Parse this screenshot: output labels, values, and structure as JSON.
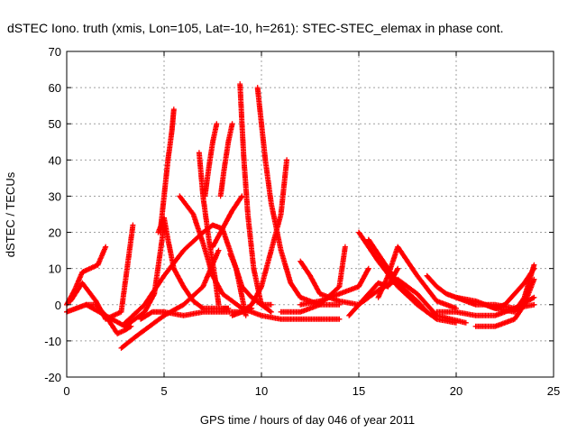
{
  "chart_data": {
    "type": "scatter",
    "title": "dSTEC Iono. truth (xmis, Lon=105, Lat=-10, h=261): STEC-STEC_elemax in phase cont.",
    "xlabel": "GPS time / hours of day 046 of year 2011",
    "ylabel": "dSTEC  / TECUs",
    "xlim": [
      0,
      25
    ],
    "ylim": [
      -20,
      70
    ],
    "x_ticks": [
      0,
      5,
      10,
      15,
      20,
      25
    ],
    "y_ticks": [
      -20,
      -10,
      0,
      10,
      20,
      30,
      40,
      50,
      60,
      70
    ],
    "grid": true,
    "marker": "+",
    "color": "#ff0000",
    "series": [
      {
        "x": [
          0.0,
          0.5,
          1.0,
          1.5,
          2.0,
          2.6,
          3.0,
          3.3
        ],
        "y": [
          -2,
          -1,
          0,
          0,
          -3,
          -8,
          -7,
          -6
        ]
      },
      {
        "x": [
          0.0,
          0.4,
          0.8,
          1.2,
          1.6,
          2.0
        ],
        "y": [
          0,
          4,
          9,
          10,
          11,
          16
        ]
      },
      {
        "x": [
          0.2,
          0.8,
          1.5,
          2.0,
          2.8,
          3.4
        ],
        "y": [
          1,
          6,
          1,
          -4,
          -2,
          22
        ]
      },
      {
        "x": [
          1.0,
          2.0,
          3.0,
          4.0,
          4.5,
          5.0
        ],
        "y": [
          0,
          -3,
          -6,
          -2,
          3,
          22
        ]
      },
      {
        "x": [
          4.7,
          5.0,
          5.2,
          5.5,
          6.0,
          6.5,
          7.0,
          7.5,
          8.0,
          8.3
        ],
        "y": [
          20,
          24,
          18,
          10,
          5,
          1,
          -1,
          -1,
          -1,
          -1
        ]
      },
      {
        "x": [
          4.8,
          5.0,
          5.2,
          5.4,
          5.5
        ],
        "y": [
          20,
          30,
          40,
          48,
          54
        ]
      },
      {
        "x": [
          2.8,
          3.5,
          4.0,
          5.0,
          6.0,
          7.0,
          7.8
        ],
        "y": [
          -12,
          -9,
          -7,
          -3,
          0,
          5,
          15
        ]
      },
      {
        "x": [
          3.0,
          4.0,
          5.0,
          6.0,
          7.0,
          7.5,
          8.0,
          8.7,
          9.2
        ],
        "y": [
          -5,
          0,
          8,
          15,
          20,
          22,
          21,
          10,
          -3
        ]
      },
      {
        "x": [
          3.8,
          4.4,
          5.0,
          6.0,
          7.0,
          8.0,
          9.0,
          9.5
        ],
        "y": [
          -4,
          -2,
          -2,
          -3,
          -2,
          -2,
          -2,
          -1
        ]
      },
      {
        "x": [
          5.8,
          6.5,
          7.0,
          7.5,
          8.0,
          9.0,
          10.0,
          11.0,
          12.0,
          13.0,
          14.0
        ],
        "y": [
          30,
          25,
          17,
          8,
          3,
          -1,
          -3,
          -4,
          -4,
          -4,
          -4
        ]
      },
      {
        "x": [
          6.8,
          7.0,
          7.3,
          7.6,
          7.8
        ],
        "y": [
          42,
          30,
          18,
          8,
          0
        ]
      },
      {
        "x": [
          7.1,
          7.3,
          7.5,
          7.7
        ],
        "y": [
          30,
          38,
          45,
          50
        ]
      },
      {
        "x": [
          7.5,
          8.0,
          8.5,
          9.0
        ],
        "y": [
          16,
          21,
          26,
          30
        ]
      },
      {
        "x": [
          7.9,
          8.1,
          8.3,
          8.5
        ],
        "y": [
          30,
          38,
          45,
          50
        ]
      },
      {
        "x": [
          8.4,
          8.7,
          9.0,
          9.5,
          10.0,
          10.5
        ],
        "y": [
          14,
          10,
          5,
          2,
          0,
          0
        ]
      },
      {
        "x": [
          8.9,
          9.0,
          9.1,
          9.3,
          9.6,
          10.0,
          10.5
        ],
        "y": [
          61,
          50,
          40,
          25,
          10,
          0,
          -2
        ]
      },
      {
        "x": [
          9.8,
          10.0,
          10.2,
          10.5,
          11.0,
          11.5,
          12.0,
          13.0,
          14.0
        ],
        "y": [
          60,
          50,
          40,
          28,
          15,
          6,
          2,
          0,
          0
        ]
      },
      {
        "x": [
          8.5,
          9.0,
          9.5,
          10.0,
          10.5,
          11.0,
          11.3
        ],
        "y": [
          -3,
          -2,
          0,
          5,
          15,
          25,
          40
        ]
      },
      {
        "x": [
          11.0,
          12.0,
          13.0,
          14.0,
          14.3
        ],
        "y": [
          -2,
          -2,
          0,
          5,
          16
        ]
      },
      {
        "x": [
          12.0,
          12.5,
          13.0,
          14.0,
          15.0,
          16.0
        ],
        "y": [
          12,
          8,
          3,
          1,
          0,
          4
        ]
      },
      {
        "x": [
          12.0,
          13.0,
          14.0,
          15.0,
          15.5
        ],
        "y": [
          0,
          1,
          3,
          5,
          10
        ]
      },
      {
        "x": [
          14.5,
          15.0,
          15.5,
          16.0,
          16.5,
          17.0
        ],
        "y": [
          -3,
          0,
          3,
          6,
          5,
          10
        ]
      },
      {
        "x": [
          15.0,
          16.0,
          17.0,
          18.0,
          19.0,
          20.0
        ],
        "y": [
          20,
          12,
          5,
          0,
          -4,
          -5
        ]
      },
      {
        "x": [
          15.5,
          16.0,
          16.5,
          17.0,
          18.0,
          18.5
        ],
        "y": [
          18,
          14,
          10,
          6,
          1,
          -2
        ]
      },
      {
        "x": [
          16.0,
          16.5,
          17.0,
          18.0,
          19.0,
          20.0
        ],
        "y": [
          2,
          8,
          16,
          8,
          1,
          -1
        ]
      },
      {
        "x": [
          16.0,
          17.0,
          18.0,
          18.5,
          19.0,
          20.5
        ],
        "y": [
          4,
          7,
          3,
          0,
          -3,
          -5
        ]
      },
      {
        "x": [
          18.5,
          19.0,
          19.5,
          20.0,
          20.5,
          21.0,
          22.0,
          23.0,
          24.0
        ],
        "y": [
          8,
          5,
          3,
          2,
          1,
          0,
          0,
          -1,
          0
        ]
      },
      {
        "x": [
          19.0,
          20.0,
          21.0,
          22.0,
          23.0,
          24.0
        ],
        "y": [
          -2,
          -2,
          -3,
          -3,
          -1,
          2
        ]
      },
      {
        "x": [
          20.0,
          21.0,
          22.0,
          23.0,
          23.5,
          24.0
        ],
        "y": [
          2,
          1,
          -1,
          -2,
          2,
          11
        ]
      },
      {
        "x": [
          21.0,
          22.0,
          23.0,
          23.5,
          24.0
        ],
        "y": [
          -6,
          -6,
          -4,
          0,
          7
        ]
      },
      {
        "x": [
          21.5,
          22.0,
          22.5,
          23.0,
          23.5,
          24.0
        ],
        "y": [
          0,
          -1,
          0,
          3,
          6,
          10
        ]
      }
    ]
  }
}
